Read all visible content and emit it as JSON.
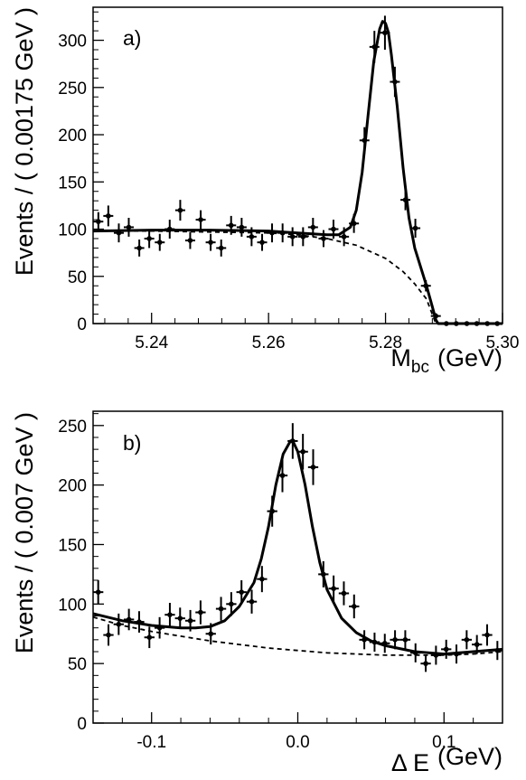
{
  "chart_data": [
    {
      "type": "scatter",
      "panel_label": "a)",
      "ylabel": "Events / ( 0.00175 GeV )",
      "xlabel_main": "M",
      "xlabel_sub": "bc",
      "xlabel_unit": "(GeV)",
      "xlim": [
        5.23,
        5.3
      ],
      "ylim": [
        0,
        335
      ],
      "xticks": [
        5.24,
        5.26,
        5.28,
        5.3
      ],
      "xtick_labels": [
        "5.24",
        "5.26",
        "5.28",
        "5.30"
      ],
      "yticks": [
        0,
        50,
        100,
        150,
        200,
        250,
        300
      ],
      "ytick_labels": [
        "0",
        "50",
        "100",
        "150",
        "200",
        "250",
        "300"
      ],
      "grid": false,
      "points": {
        "name": "",
        "x": [
          5.2309,
          5.2326,
          5.2344,
          5.2361,
          5.2379,
          5.2396,
          5.2414,
          5.2431,
          5.2449,
          5.2466,
          5.2484,
          5.2501,
          5.2519,
          5.2536,
          5.2554,
          5.2571,
          5.2589,
          5.2606,
          5.2624,
          5.2641,
          5.2659,
          5.2676,
          5.2694,
          5.2711,
          5.2729,
          5.2746,
          5.2764,
          5.2781,
          5.2799,
          5.2816,
          5.2834,
          5.2851,
          5.2869,
          5.2886,
          5.2904,
          5.2921,
          5.2939,
          5.2956,
          5.2974,
          5.2991
        ],
        "y": [
          108,
          114,
          96,
          102,
          80,
          90,
          86,
          100,
          120,
          88,
          110,
          86,
          80,
          104,
          102,
          92,
          86,
          96,
          96,
          92,
          92,
          102,
          90,
          100,
          92,
          106,
          194,
          293,
          308,
          256,
          131,
          101,
          40,
          8,
          0,
          0,
          0,
          0,
          0,
          0
        ],
        "yerr": [
          10,
          11,
          10,
          10,
          9,
          10,
          9,
          10,
          11,
          9,
          10,
          9,
          9,
          10,
          10,
          10,
          9,
          10,
          10,
          10,
          10,
          10,
          9,
          10,
          10,
          10,
          14,
          17,
          18,
          16,
          11,
          10,
          6,
          3,
          0,
          0,
          0,
          0,
          0,
          0
        ]
      },
      "fit_total": {
        "x": [
          5.23,
          5.24,
          5.25,
          5.26,
          5.265,
          5.27,
          5.272,
          5.274,
          5.275,
          5.276,
          5.277,
          5.278,
          5.279,
          5.2795,
          5.28,
          5.2805,
          5.281,
          5.282,
          5.283,
          5.284,
          5.285,
          5.286,
          5.287,
          5.288,
          5.2886,
          5.289,
          5.295,
          5.3
        ],
        "y": [
          98,
          99,
          99,
          98,
          96,
          94,
          94,
          102,
          120,
          160,
          220,
          278,
          312,
          320,
          318,
          308,
          285,
          230,
          165,
          112,
          80,
          60,
          40,
          18,
          4,
          0,
          0,
          0
        ]
      },
      "fit_background": {
        "x": [
          5.23,
          5.24,
          5.25,
          5.26,
          5.265,
          5.27,
          5.275,
          5.28,
          5.283,
          5.285,
          5.287,
          5.2886
        ],
        "y": [
          98,
          98,
          97,
          96,
          94,
          90,
          83,
          69,
          55,
          42,
          26,
          0
        ]
      }
    },
    {
      "type": "scatter",
      "panel_label": "b)",
      "ylabel": "Events / ( 0.007 GeV )",
      "xlabel_main": "Δ E",
      "xlabel_sub": "",
      "xlabel_unit": "(GeV)",
      "xlim": [
        -0.14,
        0.14
      ],
      "ylim": [
        0,
        262
      ],
      "xticks": [
        -0.1,
        0.0,
        0.1
      ],
      "xtick_labels": [
        "-0.1",
        "0.0",
        "0.1"
      ],
      "yticks": [
        0,
        50,
        100,
        150,
        200,
        250
      ],
      "ytick_labels": [
        "0",
        "50",
        "100",
        "150",
        "200",
        "250"
      ],
      "grid": false,
      "points": {
        "name": "",
        "x": [
          -0.1365,
          -0.1295,
          -0.1225,
          -0.1155,
          -0.1085,
          -0.1015,
          -0.0945,
          -0.0875,
          -0.0805,
          -0.0735,
          -0.0665,
          -0.0595,
          -0.0525,
          -0.0455,
          -0.0385,
          -0.0315,
          -0.0245,
          -0.0175,
          -0.0105,
          -0.0035,
          0.0035,
          0.0105,
          0.0175,
          0.0245,
          0.0315,
          0.0385,
          0.0455,
          0.0525,
          0.0595,
          0.0665,
          0.0735,
          0.0805,
          0.0875,
          0.0945,
          0.1015,
          0.1085,
          0.1155,
          0.1225,
          0.1295,
          0.1365
        ],
        "y": [
          110,
          74,
          83,
          87,
          85,
          72,
          80,
          91,
          88,
          86,
          93,
          75,
          96,
          100,
          110,
          102,
          121,
          178,
          208,
          237,
          228,
          215,
          125,
          113,
          109,
          98,
          70,
          68,
          67,
          70,
          70,
          59,
          50,
          57,
          62,
          58,
          70,
          66,
          74,
          61
        ],
        "yerr": [
          10,
          9,
          9,
          9,
          9,
          9,
          9,
          10,
          9,
          9,
          10,
          9,
          10,
          10,
          10,
          10,
          11,
          13,
          14,
          15,
          15,
          15,
          11,
          11,
          10,
          10,
          8,
          8,
          8,
          8,
          8,
          8,
          7,
          8,
          8,
          8,
          8,
          8,
          9,
          8
        ]
      },
      "fit_total": {
        "x": [
          -0.14,
          -0.12,
          -0.1,
          -0.08,
          -0.07,
          -0.06,
          -0.05,
          -0.04,
          -0.03,
          -0.025,
          -0.02,
          -0.015,
          -0.01,
          -0.005,
          -0.003,
          0.0,
          0.005,
          0.01,
          0.015,
          0.02,
          0.03,
          0.04,
          0.05,
          0.06,
          0.08,
          0.1,
          0.12,
          0.14
        ],
        "y": [
          92,
          86,
          82,
          80,
          80,
          81,
          86,
          98,
          118,
          138,
          165,
          200,
          226,
          237,
          236,
          228,
          200,
          165,
          135,
          112,
          88,
          76,
          69,
          65,
          60,
          58,
          60,
          62
        ]
      },
      "fit_background": {
        "x": [
          -0.14,
          -0.12,
          -0.1,
          -0.08,
          -0.06,
          -0.04,
          -0.02,
          0.0,
          0.02,
          0.04,
          0.06,
          0.08,
          0.1,
          0.12,
          0.14
        ],
        "y": [
          89,
          82,
          77,
          73,
          69,
          66,
          63,
          61,
          59,
          58,
          57,
          57,
          57,
          58,
          60
        ]
      }
    }
  ]
}
